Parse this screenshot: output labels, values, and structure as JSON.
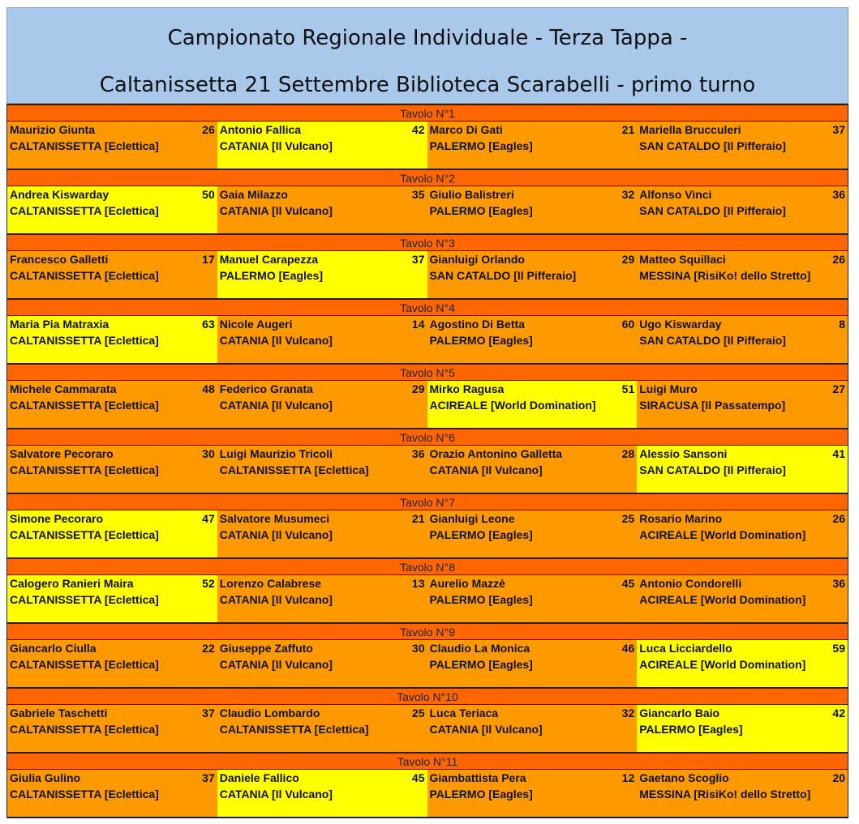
{
  "title": {
    "line1": "Campionato Regionale Individuale - Terza Tappa -",
    "line2": "Caltanissetta 21 Settembre Biblioteca Scarabelli - primo turno"
  },
  "colors": {
    "header": "#ff6600",
    "player": "#ff9900",
    "winner": "#ffff00",
    "title_bg": "#a9c8ea"
  },
  "tables": [
    {
      "label": "Tavolo N°1",
      "players": [
        {
          "name": "Maurizio Giunta",
          "score": "26",
          "team": "CALTANISSETTA [Eclettica]",
          "highlight": false
        },
        {
          "name": "Antonio  Fallica",
          "score": "42",
          "team": "CATANIA [Il Vulcano]",
          "highlight": true
        },
        {
          "name": "Marco Di Gati",
          "score": "21",
          "team": "PALERMO [Eagles]",
          "highlight": false
        },
        {
          "name": "Mariella  Brucculeri",
          "score": "37",
          "team": "SAN CATALDO [Il Pifferaio]",
          "highlight": false
        }
      ]
    },
    {
      "label": "Tavolo N°2",
      "players": [
        {
          "name": "Andrea Kiswarday",
          "score": "50",
          "team": "CALTANISSETTA [Eclettica]",
          "highlight": true
        },
        {
          "name": "Gaia Milazzo",
          "score": "35",
          "team": "CATANIA [Il Vulcano]",
          "highlight": false
        },
        {
          "name": "Giulio Balistreri",
          "score": "32",
          "team": "PALERMO [Eagles]",
          "highlight": false
        },
        {
          "name": "Alfonso Vinci",
          "score": "36",
          "team": "SAN CATALDO [Il Pifferaio]",
          "highlight": false
        }
      ]
    },
    {
      "label": "Tavolo N°3",
      "players": [
        {
          "name": "Francesco  Galletti",
          "score": "17",
          "team": "CALTANISSETTA [Eclettica]",
          "highlight": false
        },
        {
          "name": "Manuel Carapezza",
          "score": "37",
          "team": "PALERMO [Eagles]",
          "highlight": true
        },
        {
          "name": "Gianluigi Orlando",
          "score": "29",
          "team": "SAN CATALDO [Il Pifferaio]",
          "highlight": false
        },
        {
          "name": "Matteo Squillaci",
          "score": "26",
          "team": "MESSINA [RisiKo! dello Stretto]",
          "highlight": false
        }
      ]
    },
    {
      "label": "Tavolo N°4",
      "players": [
        {
          "name": "Maria Pia  Matraxia",
          "score": "63",
          "team": "CALTANISSETTA [Eclettica]",
          "highlight": true
        },
        {
          "name": "Nicole Augeri",
          "score": "14",
          "team": "CATANIA [Il Vulcano]",
          "highlight": false
        },
        {
          "name": "Agostino Di Betta",
          "score": "60",
          "team": "PALERMO [Eagles]",
          "highlight": false
        },
        {
          "name": "Ugo Kiswarday",
          "score": "8",
          "team": "SAN CATALDO [Il Pifferaio]",
          "highlight": false
        }
      ]
    },
    {
      "label": "Tavolo N°5",
      "players": [
        {
          "name": "Michele Cammarata",
          "score": "48",
          "team": "CALTANISSETTA [Eclettica]",
          "highlight": false
        },
        {
          "name": "Federico Granata",
          "score": "29",
          "team": "CATANIA [Il Vulcano]",
          "highlight": false
        },
        {
          "name": "Mirko Ragusa",
          "score": "51",
          "team": "ACIREALE [World Domination]",
          "highlight": true
        },
        {
          "name": "Luigi Muro",
          "score": "27",
          "team": "SIRACUSA [Il Passatempo]",
          "highlight": false
        }
      ]
    },
    {
      "label": "Tavolo N°6",
      "players": [
        {
          "name": "Salvatore  Pecoraro",
          "score": "30",
          "team": "CALTANISSETTA [Eclettica]",
          "highlight": false
        },
        {
          "name": "Luigi Maurizio  Tricoli",
          "score": "36",
          "team": "CALTANISSETTA [Eclettica]",
          "highlight": false
        },
        {
          "name": "Orazio Antonino Galletta",
          "score": "28",
          "team": "CATANIA [Il Vulcano]",
          "highlight": false
        },
        {
          "name": "Alessio  Sansoni",
          "score": "41",
          "team": "SAN CATALDO [Il Pifferaio]",
          "highlight": true
        }
      ]
    },
    {
      "label": "Tavolo N°7",
      "players": [
        {
          "name": "Simone Pecoraro",
          "score": "47",
          "team": "CALTANISSETTA [Eclettica]",
          "highlight": true
        },
        {
          "name": "Salvatore  Musumeci",
          "score": "21",
          "team": "CATANIA [Il Vulcano]",
          "highlight": false
        },
        {
          "name": "Gianluigi Leone",
          "score": "25",
          "team": "PALERMO [Eagles]",
          "highlight": false
        },
        {
          "name": "Rosario Marino",
          "score": "26",
          "team": "ACIREALE [World Domination]",
          "highlight": false
        }
      ]
    },
    {
      "label": "Tavolo N°8",
      "players": [
        {
          "name": "Calogero Ranieri Maira",
          "score": "52",
          "team": "CALTANISSETTA [Eclettica]",
          "highlight": true
        },
        {
          "name": "Lorenzo Calabrese",
          "score": "13",
          "team": "CATANIA [Il Vulcano]",
          "highlight": false
        },
        {
          "name": "Aurelio  Mazzè",
          "score": "45",
          "team": "PALERMO [Eagles]",
          "highlight": false
        },
        {
          "name": "Antonio  Condorelli",
          "score": "36",
          "team": "ACIREALE [World Domination]",
          "highlight": false
        }
      ]
    },
    {
      "label": "Tavolo N°9",
      "players": [
        {
          "name": "Giancarlo  Ciulla",
          "score": "22",
          "team": "CALTANISSETTA [Eclettica]",
          "highlight": false
        },
        {
          "name": "Giuseppe Zaffuto",
          "score": "30",
          "team": "CATANIA [Il Vulcano]",
          "highlight": false
        },
        {
          "name": "Claudio La Monica",
          "score": "46",
          "team": "PALERMO [Eagles]",
          "highlight": false
        },
        {
          "name": "Luca  Licciardello",
          "score": "59",
          "team": "ACIREALE [World Domination]",
          "highlight": true
        }
      ]
    },
    {
      "label": "Tavolo N°10",
      "players": [
        {
          "name": "Gabriele  Taschetti",
          "score": "37",
          "team": "CALTANISSETTA [Eclettica]",
          "highlight": false
        },
        {
          "name": "Claudio Lombardo",
          "score": "25",
          "team": "CALTANISSETTA [Eclettica]",
          "highlight": false
        },
        {
          "name": "Luca Teriaca",
          "score": "32",
          "team": "CATANIA [Il Vulcano]",
          "highlight": false
        },
        {
          "name": "Giancarlo Baio",
          "score": "42",
          "team": "PALERMO [Eagles]",
          "highlight": true
        }
      ]
    },
    {
      "label": "Tavolo N°11",
      "players": [
        {
          "name": "Giulia Gulino",
          "score": "37",
          "team": "CALTANISSETTA [Eclettica]",
          "highlight": false
        },
        {
          "name": "Daniele  Fallico",
          "score": "45",
          "team": "CATANIA [Il Vulcano]",
          "highlight": true
        },
        {
          "name": "Giambattista Pera",
          "score": "12",
          "team": "PALERMO [Eagles]",
          "highlight": false
        },
        {
          "name": "Gaetano  Scoglio",
          "score": "20",
          "team": "MESSINA [RisiKo! dello Stretto]",
          "highlight": false
        }
      ]
    }
  ]
}
